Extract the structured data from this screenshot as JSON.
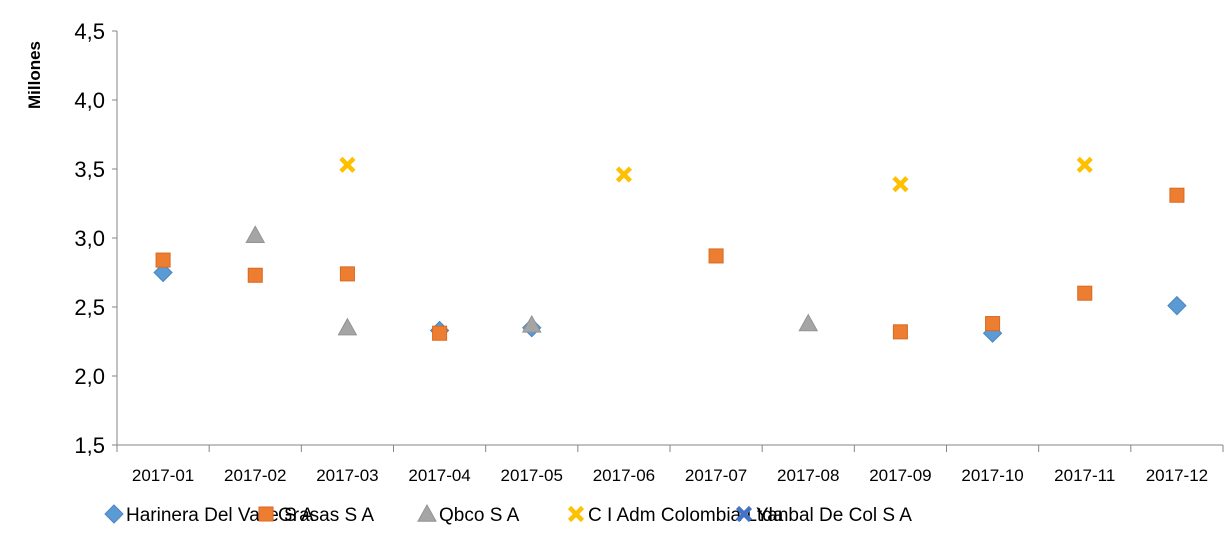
{
  "chart_data": {
    "type": "scatter",
    "ylabel": "Millones",
    "xlabel": "",
    "ylim": [
      1.5,
      4.5
    ],
    "yticks": [
      "1,5",
      "2,0",
      "2,5",
      "3,0",
      "3,5",
      "4,0",
      "4,5"
    ],
    "categories": [
      "2017-01",
      "2017-02",
      "2017-03",
      "2017-04",
      "2017-05",
      "2017-06",
      "2017-07",
      "2017-08",
      "2017-09",
      "2017-10",
      "2017-11",
      "2017-12"
    ],
    "grid": false,
    "legend_position": "bottom",
    "series": [
      {
        "name": "Harinera Del Valle S A",
        "marker": "diamond",
        "color": "#5B9BD5",
        "points": [
          [
            "2017-01",
            2.75
          ],
          [
            "2017-04",
            2.33
          ],
          [
            "2017-05",
            2.35
          ],
          [
            "2017-10",
            2.31
          ],
          [
            "2017-12",
            2.51
          ]
        ]
      },
      {
        "name": "Grasas S A",
        "marker": "square",
        "color": "#ED7D31",
        "points": [
          [
            "2017-01",
            2.84
          ],
          [
            "2017-02",
            2.73
          ],
          [
            "2017-03",
            2.74
          ],
          [
            "2017-04",
            2.31
          ],
          [
            "2017-07",
            2.87
          ],
          [
            "2017-09",
            2.32
          ],
          [
            "2017-10",
            2.38
          ],
          [
            "2017-11",
            2.6
          ],
          [
            "2017-12",
            3.31
          ]
        ]
      },
      {
        "name": "Qbco S A",
        "marker": "triangle",
        "color": "#A5A5A5",
        "points": [
          [
            "2017-02",
            3.02
          ],
          [
            "2017-03",
            2.35
          ],
          [
            "2017-05",
            2.37
          ],
          [
            "2017-08",
            2.38
          ]
        ]
      },
      {
        "name": "C I Adm Colombia Ltda",
        "marker": "x",
        "color": "#FFC000",
        "points": [
          [
            "2017-03",
            3.53
          ],
          [
            "2017-06",
            3.46
          ],
          [
            "2017-09",
            3.39
          ],
          [
            "2017-11",
            3.53
          ]
        ]
      },
      {
        "name": "Yanbal De Col S A",
        "marker": "x",
        "color": "#4472C4",
        "points": []
      }
    ]
  }
}
